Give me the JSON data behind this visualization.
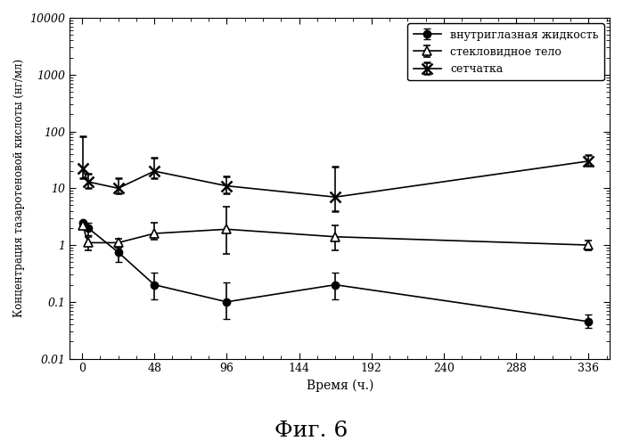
{
  "title": "Фиг. 6",
  "xlabel": "Время (ч.)",
  "ylabel": "Концентрация тазаротеновой кислоты (нг/мл)",
  "xticks": [
    0,
    48,
    96,
    144,
    192,
    240,
    288,
    336
  ],
  "yticks": [
    0.01,
    0.1,
    1,
    10,
    100,
    1000,
    10000
  ],
  "ytick_labels": [
    "0.01",
    "0.1",
    "1",
    "10",
    "100",
    "1000",
    "10000"
  ],
  "xlim": [
    -8,
    350
  ],
  "ylim": [
    0.01,
    10000
  ],
  "series": [
    {
      "label": "внутриглазная жидкость",
      "marker": "o",
      "x": [
        0.5,
        4,
        24,
        48,
        96,
        168,
        336
      ],
      "y": [
        2.5,
        2.0,
        0.75,
        0.2,
        0.1,
        0.2,
        0.045
      ],
      "yerr_low": [
        0.0,
        0.5,
        0.25,
        0.09,
        0.05,
        0.09,
        0.01
      ],
      "yerr_high": [
        0.0,
        0.5,
        0.25,
        0.13,
        0.12,
        0.13,
        0.015
      ]
    },
    {
      "label": "стекловидное тело",
      "marker": "^",
      "x": [
        0.5,
        4,
        24,
        48,
        96,
        168,
        336
      ],
      "y": [
        2.2,
        1.1,
        1.1,
        1.6,
        1.9,
        1.4,
        1.0
      ],
      "yerr_low": [
        0.0,
        0.3,
        0.2,
        0.35,
        1.2,
        0.6,
        0.2
      ],
      "yerr_high": [
        0.0,
        0.3,
        0.2,
        0.85,
        2.8,
        0.85,
        0.2
      ]
    },
    {
      "label": "сетчатка",
      "marker": "x",
      "x": [
        0.5,
        4,
        24,
        48,
        96,
        168,
        336
      ],
      "y": [
        22.0,
        13.0,
        10.0,
        20.0,
        11.0,
        7.0,
        30.0
      ],
      "yerr_low": [
        7.0,
        3.0,
        2.0,
        5.0,
        3.0,
        3.0,
        5.0
      ],
      "yerr_high": [
        60.0,
        5.0,
        5.0,
        14.0,
        5.0,
        17.0,
        8.0
      ]
    }
  ],
  "background_color": "#ffffff"
}
